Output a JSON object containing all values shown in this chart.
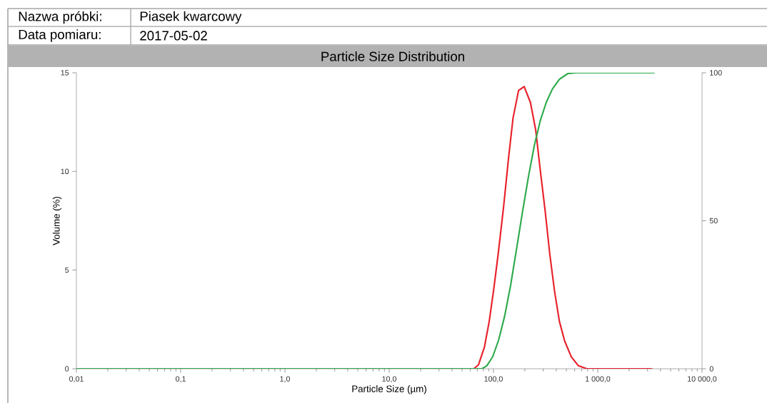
{
  "chart_data": {
    "type": "line",
    "title": "Particle Size Distribution",
    "xlabel": "Particle Size (µm)",
    "ylabel": "Volume (%)",
    "annotations": [
      "Nazwa próbki:",
      "Piasek kwarcowy",
      "Data pomiaru:",
      "2017-05-02"
    ],
    "log": "x",
    "xlim": [
      0.01,
      10000
    ],
    "xticks": [
      {
        "value": 0.01,
        "label": "0,01"
      },
      {
        "value": 0.1,
        "label": "0,1"
      },
      {
        "value": 1,
        "label": "1,0"
      },
      {
        "value": 10,
        "label": "10,0"
      },
      {
        "value": 100,
        "label": "100,0"
      },
      {
        "value": 1000,
        "label": "1 000,0"
      },
      {
        "value": 10000,
        "label": "10 000,0"
      }
    ],
    "ylim": [
      0,
      15
    ],
    "yticks": [
      0,
      5,
      10,
      15
    ],
    "y2lim": [
      0,
      100
    ],
    "y2ticks": [
      0,
      50,
      100
    ],
    "series": [
      {
        "color": "#e8202a",
        "x": [
          0.01,
          64.6,
          71.8,
          81.9,
          91,
          101,
          112,
          125,
          139,
          154,
          174,
          197,
          226,
          254,
          282,
          313,
          347,
          386,
          429,
          482,
          558,
          653,
          786,
          3334
        ],
        "values": [
          0,
          0,
          0.2,
          1.1,
          2.4,
          4.1,
          6.0,
          8.2,
          10.6,
          12.7,
          14.1,
          14.3,
          13.5,
          12.1,
          10.0,
          8.0,
          5.8,
          3.9,
          2.4,
          1.4,
          0.6,
          0.15,
          0,
          0
        ]
      },
      {
        "color": "#2eaa4a",
        "axis": "y2",
        "x": [
          0.01,
          77.6,
          86.3,
          98.4,
          112,
          128,
          146,
          166,
          190,
          217,
          247,
          282,
          321,
          367,
          429,
          515,
          620,
          3515
        ],
        "values": [
          0,
          0,
          1.0,
          4.1,
          9.7,
          17.8,
          28.2,
          40.2,
          53.1,
          65.1,
          75.6,
          84.0,
          90.0,
          94.5,
          97.8,
          99.7,
          100,
          100
        ]
      }
    ]
  }
}
